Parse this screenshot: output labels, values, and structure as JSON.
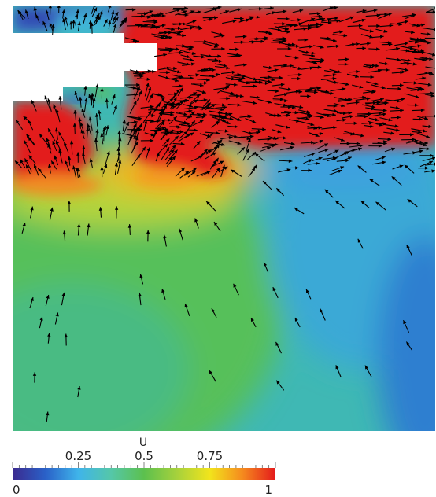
{
  "figure": {
    "field_name": "U",
    "colorbar": {
      "min": 0,
      "max": 1,
      "min_label": "0",
      "max_label": "1",
      "tick_labels": [
        "0.25",
        "0.5",
        "0.75"
      ],
      "tick_values": [
        0.25,
        0.5,
        0.75
      ],
      "colormap": [
        "#3b2a8f",
        "#2a61c8",
        "#3fb4ea",
        "#55c7a8",
        "#5cc04e",
        "#a6d13c",
        "#f2e41c",
        "#f58a1e",
        "#e41a1c"
      ]
    },
    "colors": {
      "wall": "#ffffff",
      "arrow": "#000000",
      "ink": "#222222"
    }
  }
}
